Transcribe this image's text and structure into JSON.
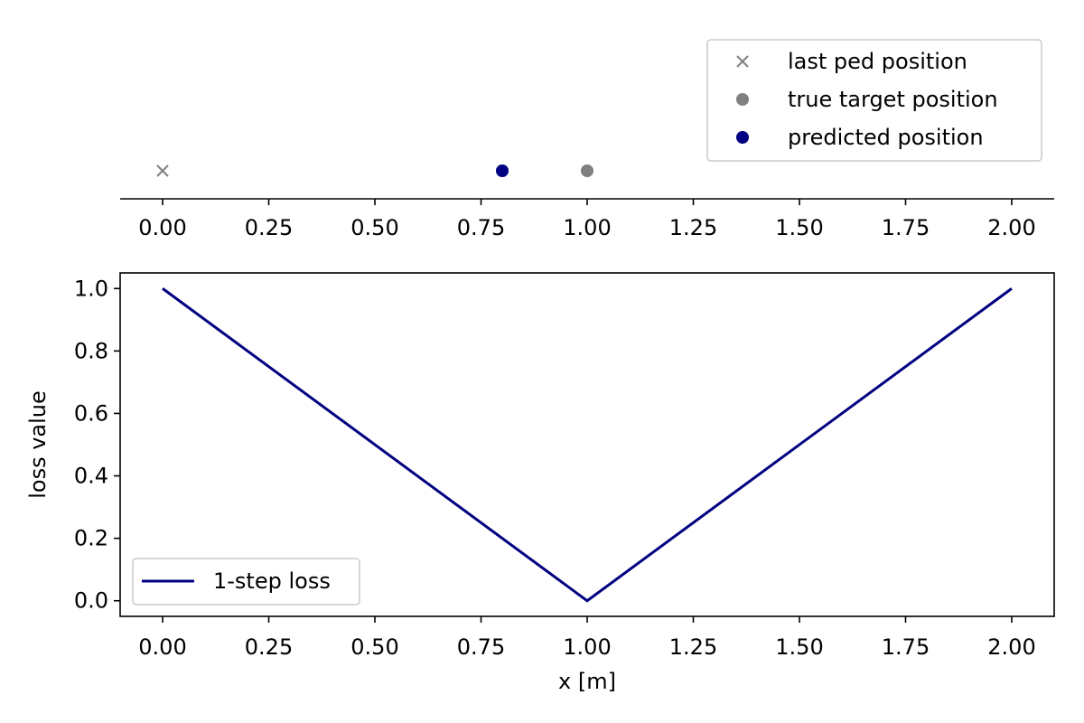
{
  "chart_data": [
    {
      "type": "scatter",
      "xlim": [
        -0.1,
        2.1
      ],
      "xticks": [
        "0.00",
        "0.25",
        "0.50",
        "0.75",
        "1.00",
        "1.25",
        "1.50",
        "1.75",
        "2.00"
      ],
      "xtick_values": [
        0,
        0.25,
        0.5,
        0.75,
        1.0,
        1.25,
        1.5,
        1.75,
        2.0
      ],
      "yaxis_visible": false,
      "legend_location": "top-right",
      "series": [
        {
          "name": "last ped position",
          "marker": "x",
          "color": "#808080",
          "points": [
            {
              "x": 0.0,
              "y": 0
            }
          ]
        },
        {
          "name": "true target position",
          "marker": "o",
          "color": "#808080",
          "points": [
            {
              "x": 1.0,
              "y": 0
            }
          ]
        },
        {
          "name": "predicted position",
          "marker": "o",
          "color": "#000080",
          "points": [
            {
              "x": 0.8,
              "y": 0
            }
          ]
        }
      ]
    },
    {
      "type": "line",
      "xlim": [
        -0.1,
        2.1
      ],
      "ylim": [
        -0.05,
        1.05
      ],
      "xticks": [
        "0.00",
        "0.25",
        "0.50",
        "0.75",
        "1.00",
        "1.25",
        "1.50",
        "1.75",
        "2.00"
      ],
      "xtick_values": [
        0,
        0.25,
        0.5,
        0.75,
        1.0,
        1.25,
        1.5,
        1.75,
        2.0
      ],
      "yticks": [
        "0.0",
        "0.2",
        "0.4",
        "0.6",
        "0.8",
        "1.0"
      ],
      "ytick_values": [
        0,
        0.2,
        0.4,
        0.6,
        0.8,
        1.0
      ],
      "xlabel": "x [m]",
      "ylabel": "loss value",
      "legend_location": "lower-left",
      "series": [
        {
          "name": "1-step loss",
          "color": "#000080",
          "x": [
            0.0,
            1.0,
            2.0
          ],
          "y": [
            1.0,
            0.0,
            1.0
          ]
        }
      ]
    }
  ]
}
